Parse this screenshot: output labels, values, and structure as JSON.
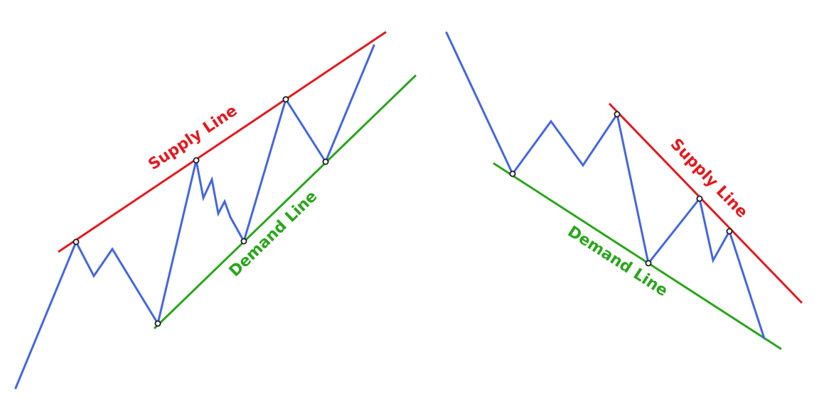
{
  "colors": {
    "price": "#4466e2",
    "supply": "#e3191f",
    "demand": "#2aa51b",
    "pivot_fill": "#ffffff",
    "pivot_stroke": "#1a1a1a"
  },
  "left_diagram": {
    "supply_label": "Supply Line",
    "demand_label": "Demand Line"
  },
  "right_diagram": {
    "supply_label": "Supply Line",
    "demand_label": "Demand Line"
  }
}
